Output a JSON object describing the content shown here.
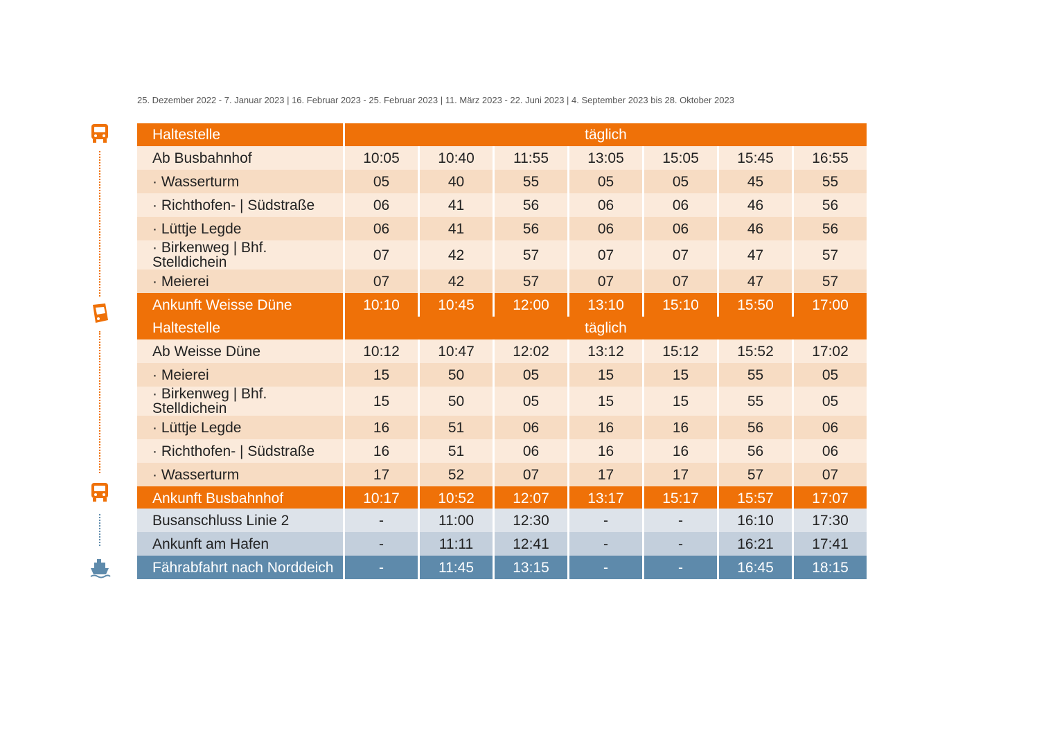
{
  "validity": "25. Dezember 2022 - 7. Januar 2023 | 16. Februar 2023 - 25. Februar 2023 | 11. März 2023 - 22. Juni 2023 | 4. September 2023 bis 28. Oktober 2023",
  "icons": [
    "bus-icon",
    "tram-icon",
    "bus-icon",
    "ferry-icon"
  ],
  "colors": {
    "orange": "#ef7108",
    "light_orange": "#fbeadb",
    "mid_orange": "#f7dcc3",
    "blue": "#5e8aab",
    "light_blue": "#dde3ea",
    "mid_blue": "#c3cfdc"
  },
  "outbound": {
    "header": {
      "stop": "Haltestelle",
      "days": "täglich"
    },
    "rows": [
      {
        "stop": "Ab Busbahnhof",
        "times": [
          "10:05",
          "10:40",
          "11:55",
          "13:05",
          "15:05",
          "15:45",
          "16:55"
        ]
      },
      {
        "stop": "· Wasserturm",
        "times": [
          "05",
          "40",
          "55",
          "05",
          "05",
          "45",
          "55"
        ]
      },
      {
        "stop": "· Richthofen- | Südstraße",
        "times": [
          "06",
          "41",
          "56",
          "06",
          "06",
          "46",
          "56"
        ]
      },
      {
        "stop": "· Lüttje Legde",
        "times": [
          "06",
          "41",
          "56",
          "06",
          "06",
          "46",
          "56"
        ]
      },
      {
        "stop": "· Birkenweg | Bhf. Stelldichein",
        "times": [
          "07",
          "42",
          "57",
          "07",
          "07",
          "47",
          "57"
        ]
      },
      {
        "stop": "· Meierei",
        "times": [
          "07",
          "42",
          "57",
          "07",
          "07",
          "47",
          "57"
        ]
      }
    ],
    "arrival": {
      "stop": "Ankunft Weisse Düne",
      "times": [
        "10:10",
        "10:45",
        "12:00",
        "13:10",
        "15:10",
        "15:50",
        "17:00"
      ]
    }
  },
  "return": {
    "header": {
      "stop": "Haltestelle",
      "days": "täglich"
    },
    "rows": [
      {
        "stop": "Ab Weisse Düne",
        "times": [
          "10:12",
          "10:47",
          "12:02",
          "13:12",
          "15:12",
          "15:52",
          "17:02"
        ]
      },
      {
        "stop": "· Meierei",
        "times": [
          "15",
          "50",
          "05",
          "15",
          "15",
          "55",
          "05"
        ]
      },
      {
        "stop": "· Birkenweg | Bhf. Stelldichein",
        "times": [
          "15",
          "50",
          "05",
          "15",
          "15",
          "55",
          "05"
        ]
      },
      {
        "stop": "· Lüttje Legde",
        "times": [
          "16",
          "51",
          "06",
          "16",
          "16",
          "56",
          "06"
        ]
      },
      {
        "stop": "· Richthofen- | Südstraße",
        "times": [
          "16",
          "51",
          "06",
          "16",
          "16",
          "56",
          "06"
        ]
      },
      {
        "stop": "· Wasserturm",
        "times": [
          "17",
          "52",
          "07",
          "17",
          "17",
          "57",
          "07"
        ]
      }
    ],
    "arrival": {
      "stop": "Ankunft Busbahnhof",
      "times": [
        "10:17",
        "10:52",
        "12:07",
        "13:17",
        "15:17",
        "15:57",
        "17:07"
      ]
    }
  },
  "connections": [
    {
      "stop": "Busanschluss Linie 2",
      "times": [
        "-",
        "11:00",
        "12:30",
        "-",
        "-",
        "16:10",
        "17:30"
      ]
    },
    {
      "stop": "Ankunft am Hafen",
      "times": [
        "-",
        "11:11",
        "12:41",
        "-",
        "-",
        "16:21",
        "17:41"
      ]
    },
    {
      "stop": "Fährabfahrt nach Norddeich",
      "times": [
        "-",
        "11:45",
        "13:15",
        "-",
        "-",
        "16:45",
        "18:15"
      ]
    }
  ]
}
